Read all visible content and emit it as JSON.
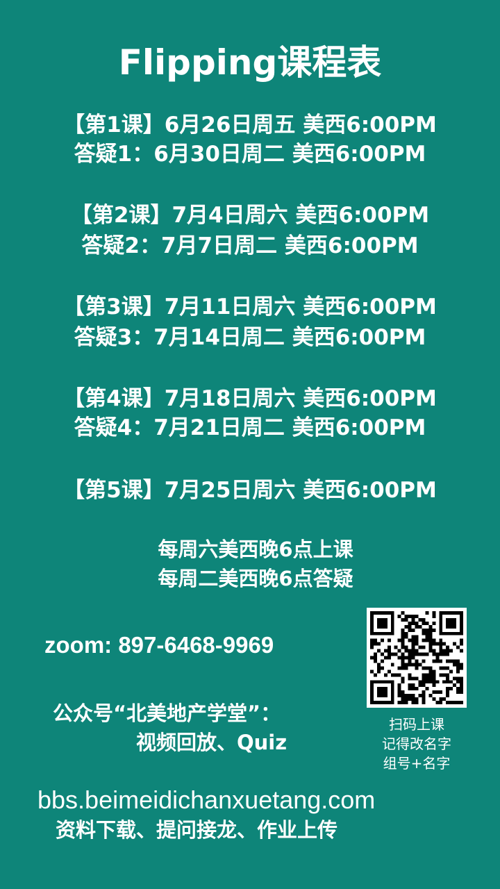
{
  "title": "Flipping课程表",
  "schedule": [
    {
      "lesson": "【第1课】6月26日周五 美西6:00PM",
      "qa": "答疑1：6月30日周二 美西6:00PM"
    },
    {
      "lesson": "【第2课】7月4日周六 美西6:00PM",
      "qa": "答疑2：7月7日周二 美西6:00PM"
    },
    {
      "lesson": "【第3课】7月11日周六 美西6:00PM",
      "qa": "答疑3：7月14日周二 美西6:00PM"
    },
    {
      "lesson": "【第4课】7月18日周六 美西6:00PM",
      "qa": "答疑4：7月21日周二 美西6:00PM"
    },
    {
      "lesson": "【第5课】7月25日周六 美西6:00PM"
    }
  ],
  "notes": {
    "line1": "每周六美西晚6点上课",
    "line2": "每周二美西晚6点答疑"
  },
  "zoom": "zoom: 897-6468-9969",
  "gongzhonghao": {
    "line1": "公众号“北美地产学堂”：",
    "line2": "视频回放、Quiz"
  },
  "qr": {
    "caption1": "扫码上课",
    "caption2": "记得改名字",
    "caption3": "组号+名字"
  },
  "bbs": {
    "url": "bbs.beimeidichanxuetang.com",
    "desc": "资料下载、提问接龙、作业上传"
  },
  "colors": {
    "background": "#0e8579",
    "text": "#ffffff"
  }
}
